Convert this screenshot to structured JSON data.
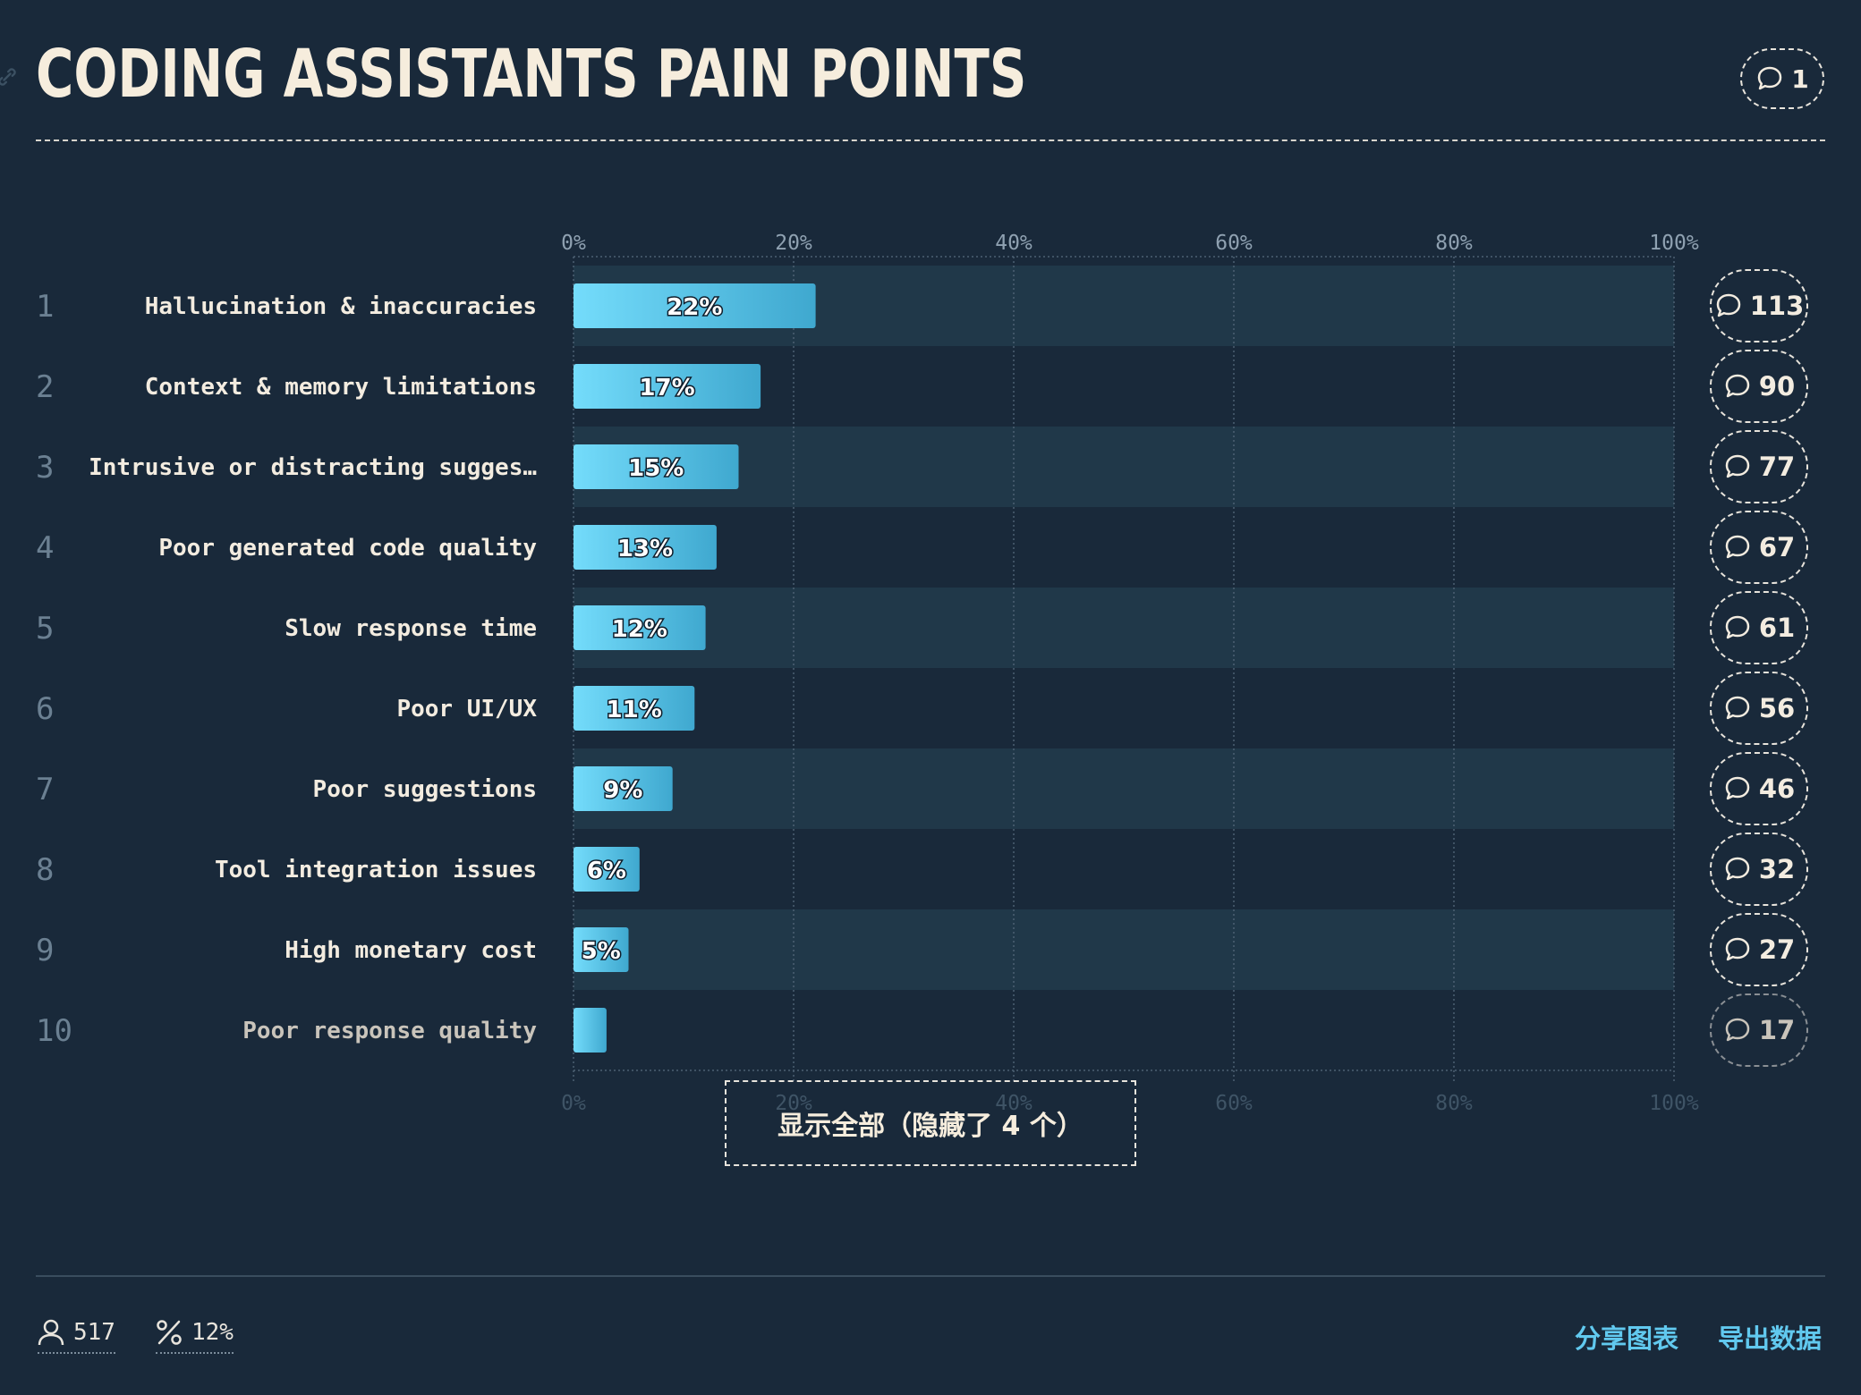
{
  "header": {
    "title": "CODING ASSISTANTS PAIN POINTS",
    "comment_count": "1"
  },
  "chart_data": {
    "type": "bar",
    "orientation": "horizontal",
    "title": "CODING ASSISTANTS PAIN POINTS",
    "x_ticks": [
      "0%",
      "20%",
      "40%",
      "60%",
      "80%",
      "100%"
    ],
    "xlim": [
      0,
      100
    ],
    "grid": true,
    "categories": [
      "Hallucination & inaccuracies",
      "Context & memory limitations",
      "Intrusive or distracting sugges…",
      "Poor generated code quality",
      "Slow response time",
      "Poor UI/UX",
      "Poor suggestions",
      "Tool integration issues",
      "High monetary cost",
      "Poor response quality"
    ],
    "ranks": [
      "1",
      "2",
      "3",
      "4",
      "5",
      "6",
      "7",
      "8",
      "9",
      "10"
    ],
    "values": [
      22,
      17,
      15,
      13,
      12,
      11,
      9,
      6,
      5,
      3
    ],
    "value_labels": [
      "22%",
      "17%",
      "15%",
      "13%",
      "12%",
      "11%",
      "9%",
      "6%",
      "5%",
      ""
    ],
    "comment_counts": [
      "113",
      "90",
      "77",
      "67",
      "61",
      "56",
      "46",
      "32",
      "27",
      "17"
    ]
  },
  "show_all_button": {
    "label": "显示全部（隐藏了 4 个）"
  },
  "footer": {
    "respondents": "517",
    "percent": "12%",
    "share_label": "分享图表",
    "export_label": "导出数据"
  },
  "colors": {
    "background": "#19293a",
    "row_stripe": "#203849",
    "bar_start": "#74dcfb",
    "bar_end": "#3fa8cf",
    "accent_link": "#61c9ef"
  }
}
